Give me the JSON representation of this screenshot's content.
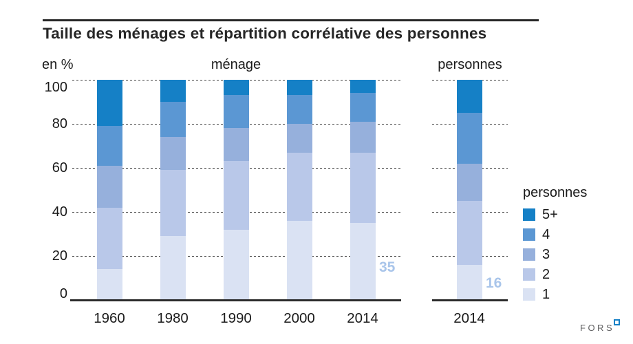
{
  "header": {
    "title": "Taille des ménages et répartition corrélative des personnes"
  },
  "chart_data": {
    "type": "bar",
    "subtype": "stacked-100-percent",
    "title": "Taille des ménages et répartition corrélative des personnes",
    "ylabel": "en %",
    "xlabel": "",
    "ylim": [
      0,
      100
    ],
    "yticks": [
      "100",
      "80",
      "60",
      "40",
      "20",
      "0"
    ],
    "grid": "horizontal-dashed",
    "legend_position": "right",
    "groups": [
      {
        "name": "ménage",
        "categories": [
          "1960",
          "1980",
          "1990",
          "2000",
          "2014"
        ],
        "series": [
          {
            "name": "5+",
            "values": [
              21,
              10,
              7,
              7,
              6
            ]
          },
          {
            "name": "4",
            "values": [
              18,
              16,
              15,
              13,
              13
            ]
          },
          {
            "name": "3",
            "values": [
              19,
              15,
              15,
              13,
              14
            ]
          },
          {
            "name": "2",
            "values": [
              28,
              30,
              31,
              31,
              32
            ]
          },
          {
            "name": "1",
            "values": [
              14,
              29,
              32,
              36,
              35
            ]
          }
        ]
      },
      {
        "name": "personnes",
        "categories": [
          "2014"
        ],
        "series": [
          {
            "name": "5+",
            "values": [
              15
            ]
          },
          {
            "name": "4",
            "values": [
              23
            ]
          },
          {
            "name": "3",
            "values": [
              17
            ]
          },
          {
            "name": "2",
            "values": [
              29
            ]
          },
          {
            "name": "1",
            "values": [
              16
            ]
          }
        ]
      }
    ],
    "annotations": [
      {
        "group": "ménage",
        "category": "2014",
        "series": "1",
        "text": "35"
      },
      {
        "group": "personnes",
        "category": "2014",
        "series": "1",
        "text": "16"
      }
    ]
  },
  "legend": {
    "title": "personnes",
    "items": [
      {
        "label": "5+"
      },
      {
        "label": "4"
      },
      {
        "label": "3"
      },
      {
        "label": "2"
      },
      {
        "label": "1"
      }
    ]
  },
  "colors": {
    "5+": "#1580c6",
    "4": "#5b97d3",
    "3": "#96b0dc",
    "2": "#b9c8e9",
    "1": "#dae2f3",
    "annotation": "#a9c5ea",
    "axis": "#2b2b2b",
    "grid": "#3a3a3a"
  },
  "footer": {
    "logo_text": "FORS"
  }
}
